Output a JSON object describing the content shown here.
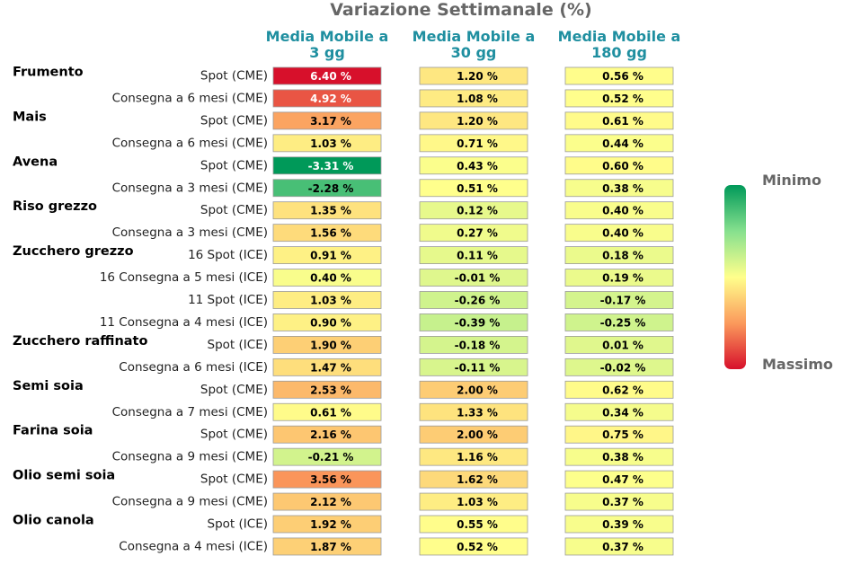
{
  "chart_data": {
    "type": "heatmap",
    "title": "Variazione Settimanale (%)",
    "columns": [
      {
        "line1": "Media Mobile a",
        "line2": "3 gg"
      },
      {
        "line1": "Media Mobile a",
        "line2": "30 gg"
      },
      {
        "line1": "Media Mobile a",
        "line2": "180 gg"
      }
    ],
    "unit": "%",
    "rows": [
      {
        "commodity": "Frumento",
        "contract": "Spot (CME)",
        "values": [
          6.4,
          1.2,
          0.56
        ]
      },
      {
        "commodity": "",
        "contract": "Consegna a 6 mesi (CME)",
        "values": [
          4.92,
          1.08,
          0.52
        ]
      },
      {
        "commodity": "Mais",
        "contract": "Spot (CME)",
        "values": [
          3.17,
          1.2,
          0.61
        ]
      },
      {
        "commodity": "",
        "contract": "Consegna a 6 mesi (CME)",
        "values": [
          1.03,
          0.71,
          0.44
        ]
      },
      {
        "commodity": "Avena",
        "contract": "Spot (CME)",
        "values": [
          -3.31,
          0.43,
          0.6
        ]
      },
      {
        "commodity": "",
        "contract": "Consegna a 3 mesi (CME)",
        "values": [
          -2.28,
          0.51,
          0.38
        ]
      },
      {
        "commodity": "Riso grezzo",
        "contract": "Spot (CME)",
        "values": [
          1.35,
          0.12,
          0.4
        ]
      },
      {
        "commodity": "",
        "contract": "Consegna a 3 mesi (CME)",
        "values": [
          1.56,
          0.27,
          0.4
        ]
      },
      {
        "commodity": "Zucchero grezzo",
        "contract": "16 Spot (ICE)",
        "values": [
          0.91,
          0.11,
          0.18
        ]
      },
      {
        "commodity": "",
        "contract": "16 Consegna a 5 mesi (ICE)",
        "values": [
          0.4,
          -0.01,
          0.19
        ]
      },
      {
        "commodity": "",
        "contract": "11 Spot (ICE)",
        "values": [
          1.03,
          -0.26,
          -0.17
        ]
      },
      {
        "commodity": "",
        "contract": "11 Consegna a 4 mesi (ICE)",
        "values": [
          0.9,
          -0.39,
          -0.25
        ]
      },
      {
        "commodity": "Zucchero raffinato",
        "contract": "Spot (ICE)",
        "values": [
          1.9,
          -0.18,
          0.01
        ]
      },
      {
        "commodity": "",
        "contract": "Consegna a 6 mesi (ICE)",
        "values": [
          1.47,
          -0.11,
          -0.02
        ]
      },
      {
        "commodity": "Semi soia",
        "contract": "Spot (CME)",
        "values": [
          2.53,
          2.0,
          0.62
        ]
      },
      {
        "commodity": "",
        "contract": "Consegna a 7 mesi (CME)",
        "values": [
          0.61,
          1.33,
          0.34
        ]
      },
      {
        "commodity": "Farina soia",
        "contract": "Spot (CME)",
        "values": [
          2.16,
          2.0,
          0.75
        ]
      },
      {
        "commodity": "",
        "contract": "Consegna a 9 mesi (CME)",
        "values": [
          -0.21,
          1.16,
          0.38
        ]
      },
      {
        "commodity": "Olio semi soia",
        "contract": "Spot (CME)",
        "values": [
          3.56,
          1.62,
          0.47
        ]
      },
      {
        "commodity": "",
        "contract": "Consegna a 9 mesi (CME)",
        "values": [
          2.12,
          1.03,
          0.37
        ]
      },
      {
        "commodity": "Olio canola",
        "contract": "Spot (ICE)",
        "values": [
          1.92,
          0.55,
          0.39
        ]
      },
      {
        "commodity": "",
        "contract": "Consegna a 4 mesi (ICE)",
        "values": [
          1.87,
          0.52,
          0.37
        ]
      }
    ],
    "legend": {
      "min_label": "Minimo",
      "max_label": "Massimo",
      "placement": "right"
    }
  },
  "colors": {
    "title": "#666666",
    "column_header": "#1f8fa0",
    "scale_min": "#009959",
    "scale_mid": "#ffff8c",
    "scale_max": "#d7102b",
    "cell_border": "#9a9a9a"
  }
}
